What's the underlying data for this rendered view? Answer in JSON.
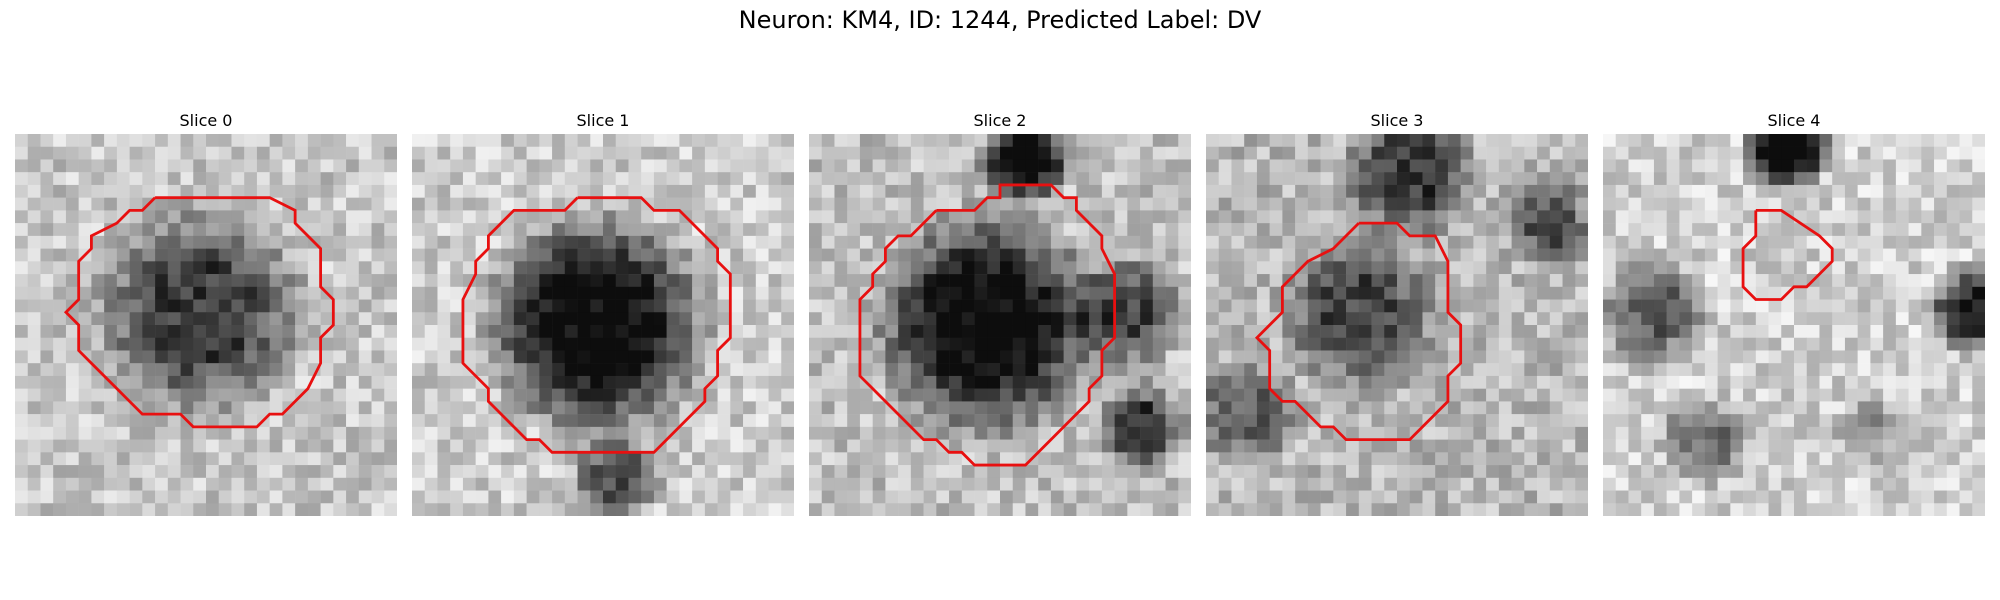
{
  "figure": {
    "title": "Neuron: KM4, ID: 1244, Predicted Label: DV"
  },
  "colors": {
    "contour": "#e81010"
  },
  "panels": [
    {
      "title": "Slice 0"
    },
    {
      "title": "Slice 1"
    },
    {
      "title": "Slice 2"
    },
    {
      "title": "Slice 3"
    },
    {
      "title": "Slice 4"
    }
  ]
}
